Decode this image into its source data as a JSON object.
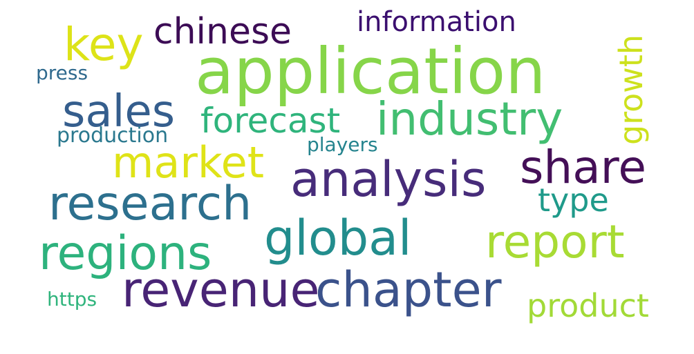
{
  "words": [
    {
      "id": "application",
      "text": "application",
      "color": "#86d549"
    },
    {
      "id": "revenue",
      "text": "revenue",
      "color": "#482475"
    },
    {
      "id": "chapter",
      "text": "chapter",
      "color": "#3b528b"
    },
    {
      "id": "analysis",
      "text": "analysis",
      "color": "#472c7a"
    },
    {
      "id": "research",
      "text": "research",
      "color": "#2d708e"
    },
    {
      "id": "regions",
      "text": "regions",
      "color": "#2db27d"
    },
    {
      "id": "global",
      "text": "global",
      "color": "#228d8d"
    },
    {
      "id": "report",
      "text": "report",
      "color": "#a8db34"
    },
    {
      "id": "share",
      "text": "share",
      "color": "#440f57"
    },
    {
      "id": "market",
      "text": "market",
      "color": "#dfe318"
    },
    {
      "id": "industry",
      "text": "industry",
      "color": "#42be71"
    },
    {
      "id": "sales",
      "text": "sales",
      "color": "#355e8d"
    },
    {
      "id": "key",
      "text": "key",
      "color": "#dde318"
    },
    {
      "id": "chinese",
      "text": "chinese",
      "color": "#3c0c55"
    },
    {
      "id": "forecast",
      "text": "forecast",
      "color": "#2fb47c"
    },
    {
      "id": "product",
      "text": "product",
      "color": "#a2da37"
    },
    {
      "id": "growth",
      "text": "growth",
      "color": "#cde11d"
    },
    {
      "id": "type",
      "text": "type",
      "color": "#1f9a8a"
    },
    {
      "id": "information",
      "text": "information",
      "color": "#3b0f6f"
    },
    {
      "id": "production",
      "text": "production",
      "color": "#2a788e"
    },
    {
      "id": "players",
      "text": "players",
      "color": "#25848e"
    },
    {
      "id": "press",
      "text": "press",
      "color": "#306a8e"
    },
    {
      "id": "https",
      "text": "https",
      "color": "#2fb47c"
    }
  ]
}
